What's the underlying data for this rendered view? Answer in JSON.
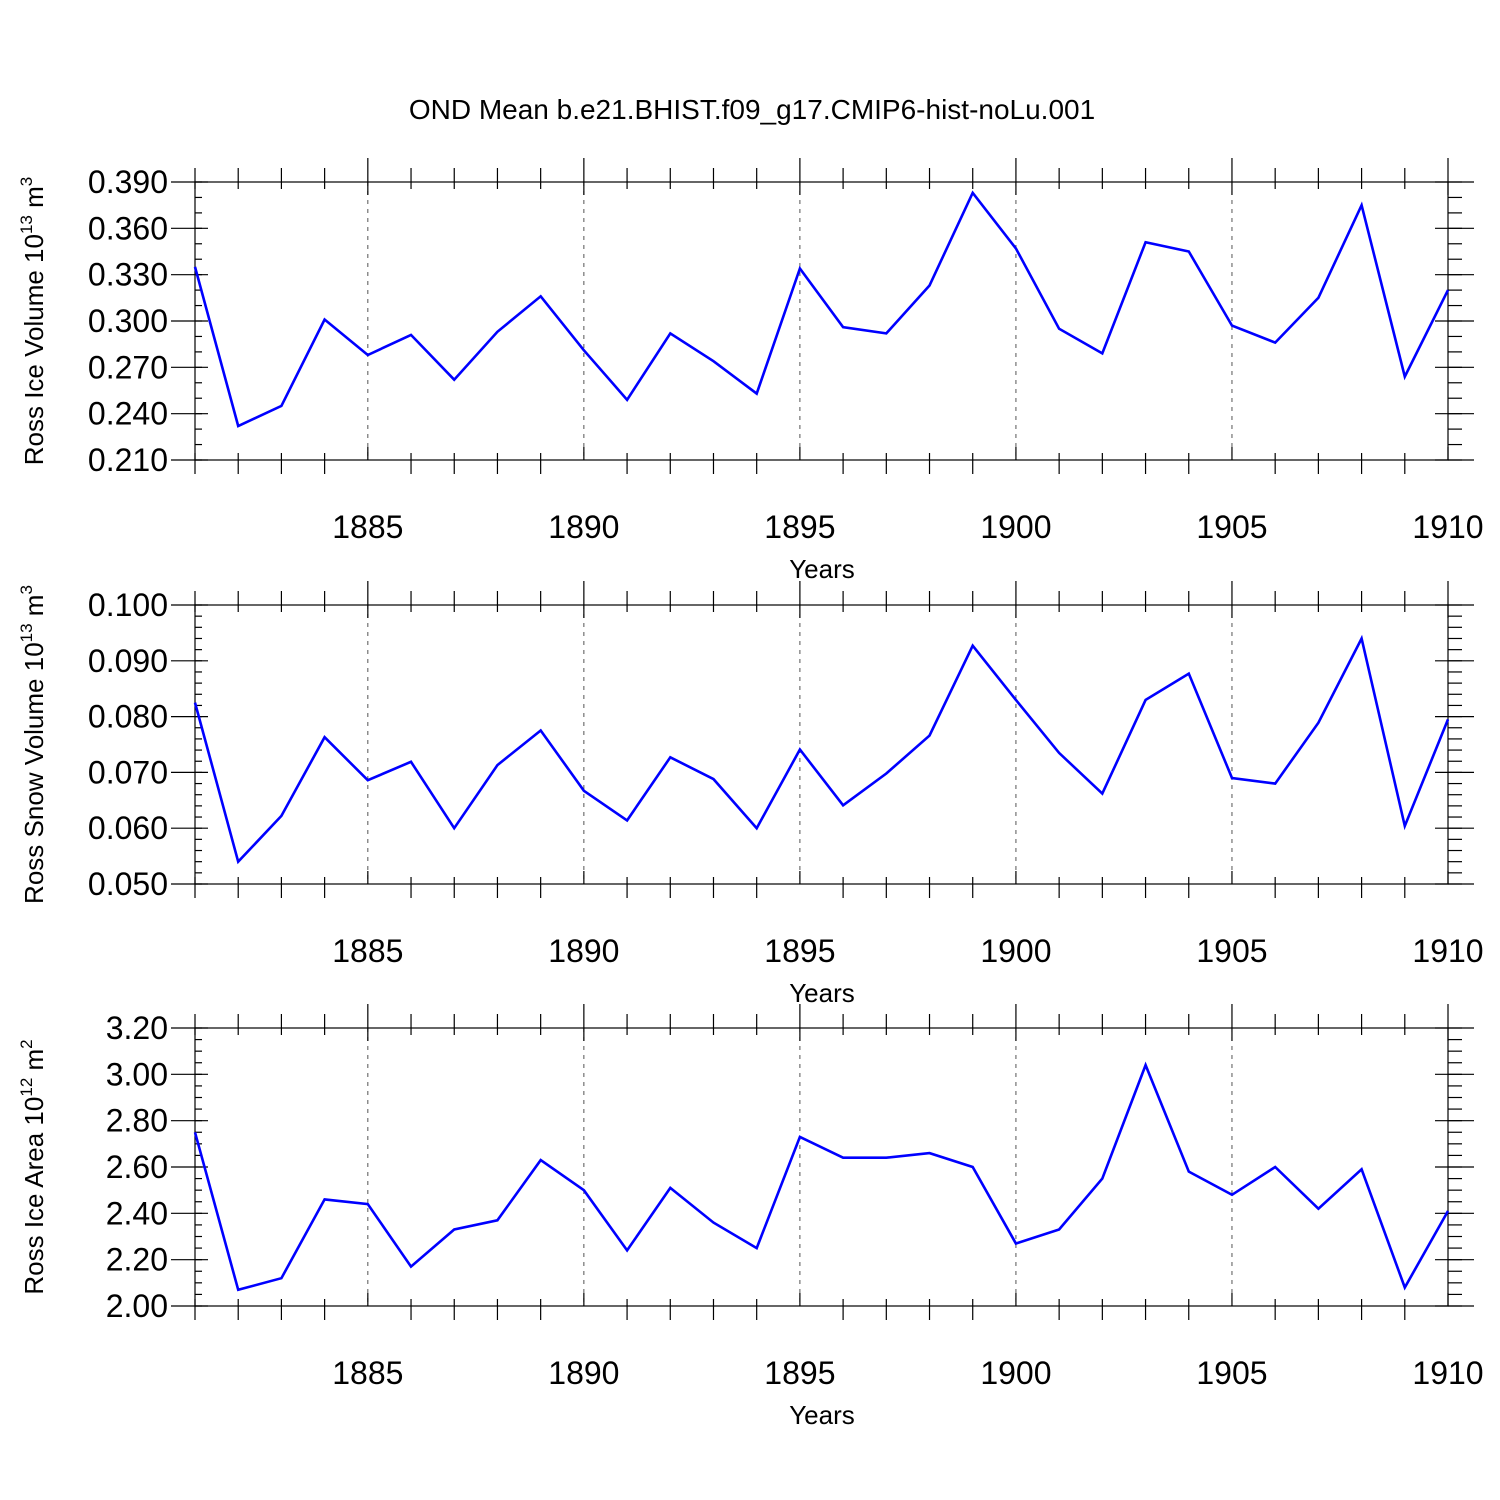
{
  "title": "OND Mean b.e21.BHIST.f09_g17.CMIP6-hist-noLu.001",
  "colors": {
    "series": "#0000ff",
    "axis": "#000000",
    "grid": "#555555"
  },
  "chart_data": [
    {
      "type": "line",
      "id": "ice-volume",
      "ylabel_main": "Ross Ice Volume 10",
      "ylabel_exp": "13",
      "ylabel_unit": " m",
      "ylabel_unit_exp": "3",
      "xlabel": "Years",
      "xlim": [
        1881,
        1910
      ],
      "ylim": [
        0.21,
        0.39
      ],
      "yticks": [
        0.21,
        0.24,
        0.27,
        0.3,
        0.33,
        0.36,
        0.39
      ],
      "ytick_labels": [
        "0.210",
        "0.240",
        "0.270",
        "0.300",
        "0.330",
        "0.360",
        "0.390"
      ],
      "yminor_step": 0.01,
      "xticks": [
        1885,
        1890,
        1895,
        1900,
        1905,
        1910
      ],
      "xtick_labels": [
        "1885",
        "1890",
        "1895",
        "1900",
        "1905",
        "1910"
      ],
      "grid_x": [
        1885,
        1890,
        1895,
        1900,
        1905
      ],
      "x": [
        1881,
        1882,
        1883,
        1884,
        1885,
        1886,
        1887,
        1888,
        1889,
        1890,
        1891,
        1892,
        1893,
        1894,
        1895,
        1896,
        1897,
        1898,
        1899,
        1900,
        1901,
        1902,
        1903,
        1904,
        1905,
        1906,
        1907,
        1908,
        1909,
        1910
      ],
      "values": [
        0.335,
        0.232,
        0.245,
        0.301,
        0.278,
        0.291,
        0.262,
        0.293,
        0.316,
        0.281,
        0.249,
        0.292,
        0.274,
        0.253,
        0.334,
        0.296,
        0.292,
        0.323,
        0.383,
        0.347,
        0.295,
        0.279,
        0.351,
        0.345,
        0.297,
        0.286,
        0.315,
        0.375,
        0.264,
        0.32
      ]
    },
    {
      "type": "line",
      "id": "snow-volume",
      "ylabel_main": "Ross Snow Volume 10",
      "ylabel_exp": "13",
      "ylabel_unit": " m",
      "ylabel_unit_exp": "3",
      "xlabel": "Years",
      "xlim": [
        1881,
        1910
      ],
      "ylim": [
        0.05,
        0.1
      ],
      "yticks": [
        0.05,
        0.06,
        0.07,
        0.08,
        0.09,
        0.1
      ],
      "ytick_labels": [
        "0.050",
        "0.060",
        "0.070",
        "0.080",
        "0.090",
        "0.100"
      ],
      "yminor_step": 0.002,
      "xticks": [
        1885,
        1890,
        1895,
        1900,
        1905,
        1910
      ],
      "xtick_labels": [
        "1885",
        "1890",
        "1895",
        "1900",
        "1905",
        "1910"
      ],
      "grid_x": [
        1885,
        1890,
        1895,
        1900,
        1905
      ],
      "x": [
        1881,
        1882,
        1883,
        1884,
        1885,
        1886,
        1887,
        1888,
        1889,
        1890,
        1891,
        1892,
        1893,
        1894,
        1895,
        1896,
        1897,
        1898,
        1899,
        1900,
        1901,
        1902,
        1903,
        1904,
        1905,
        1906,
        1907,
        1908,
        1909,
        1910
      ],
      "values": [
        0.0825,
        0.054,
        0.0622,
        0.0763,
        0.0686,
        0.0719,
        0.06,
        0.0713,
        0.0775,
        0.0667,
        0.0614,
        0.0727,
        0.0688,
        0.06,
        0.0741,
        0.0641,
        0.0698,
        0.0766,
        0.0927,
        0.083,
        0.0735,
        0.0662,
        0.083,
        0.0877,
        0.069,
        0.068,
        0.0789,
        0.094,
        0.0604,
        0.0795
      ]
    },
    {
      "type": "line",
      "id": "ice-area",
      "ylabel_main": "Ross Ice Area 10",
      "ylabel_exp": "12",
      "ylabel_unit": " m",
      "ylabel_unit_exp": "2",
      "xlabel": "Years",
      "xlim": [
        1881,
        1910
      ],
      "ylim": [
        2.0,
        3.2
      ],
      "yticks": [
        2.0,
        2.2,
        2.4,
        2.6,
        2.8,
        3.0,
        3.2
      ],
      "ytick_labels": [
        "2.00",
        "2.20",
        "2.40",
        "2.60",
        "2.80",
        "3.00",
        "3.20"
      ],
      "yminor_step": 0.05,
      "xticks": [
        1885,
        1890,
        1895,
        1900,
        1905,
        1910
      ],
      "xtick_labels": [
        "1885",
        "1890",
        "1895",
        "1900",
        "1905",
        "1910"
      ],
      "grid_x": [
        1885,
        1890,
        1895,
        1900,
        1905
      ],
      "x": [
        1881,
        1882,
        1883,
        1884,
        1885,
        1886,
        1887,
        1888,
        1889,
        1890,
        1891,
        1892,
        1893,
        1894,
        1895,
        1896,
        1897,
        1898,
        1899,
        1900,
        1901,
        1902,
        1903,
        1904,
        1905,
        1906,
        1907,
        1908,
        1909,
        1910
      ],
      "values": [
        2.75,
        2.07,
        2.12,
        2.46,
        2.44,
        2.17,
        2.33,
        2.37,
        2.63,
        2.5,
        2.24,
        2.51,
        2.36,
        2.25,
        2.73,
        2.64,
        2.64,
        2.66,
        2.6,
        2.27,
        2.33,
        2.55,
        3.04,
        2.58,
        2.48,
        2.6,
        2.42,
        2.59,
        2.08,
        2.41
      ]
    }
  ]
}
